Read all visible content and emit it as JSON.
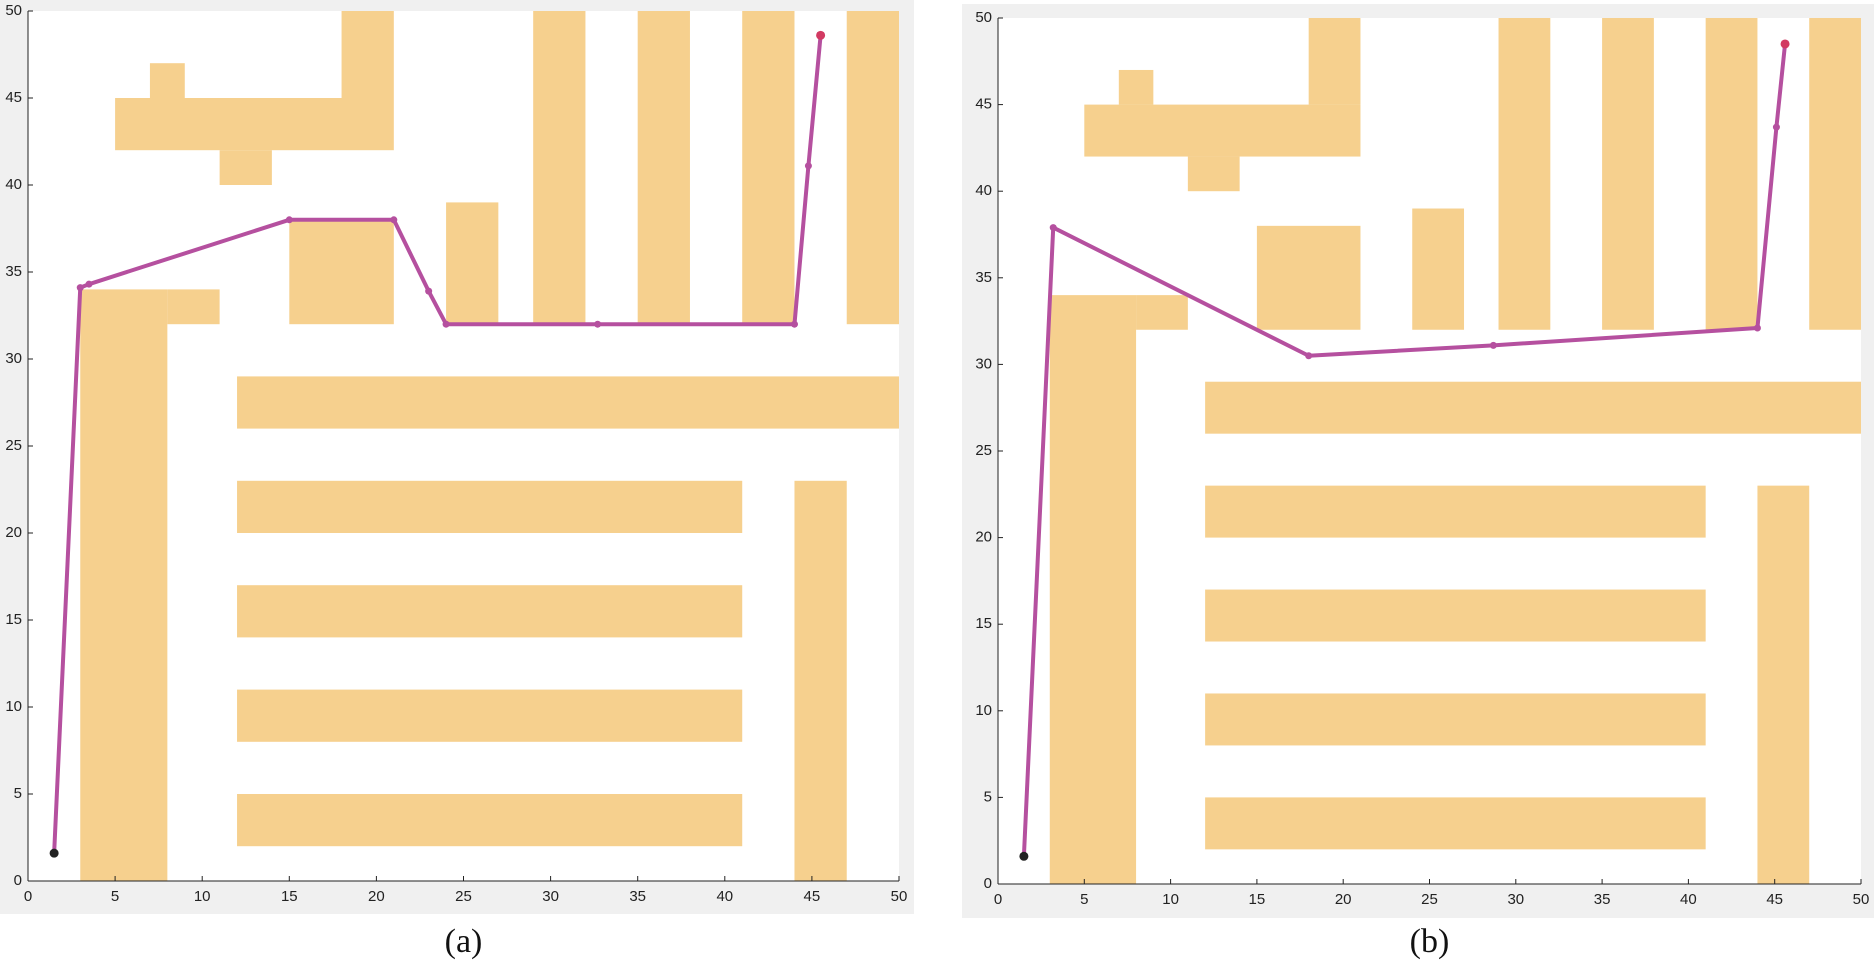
{
  "chart_data": [
    {
      "type": "line",
      "caption": "(a)",
      "xlim": [
        0,
        50
      ],
      "ylim": [
        0,
        50
      ],
      "xticks": [
        0,
        5,
        10,
        15,
        20,
        25,
        30,
        35,
        40,
        45,
        50
      ],
      "yticks": [
        0,
        5,
        10,
        15,
        20,
        25,
        30,
        35,
        40,
        45,
        50
      ],
      "obstacle_color": "#f6d08e",
      "obstacles": [
        {
          "x": [
            5,
            21
          ],
          "y": [
            42,
            45
          ]
        },
        {
          "x": [
            7,
            9
          ],
          "y": [
            45,
            47
          ]
        },
        {
          "x": [
            11,
            14
          ],
          "y": [
            40,
            42
          ]
        },
        {
          "x": [
            18,
            21
          ],
          "y": [
            45,
            50
          ]
        },
        {
          "x": [
            15,
            21
          ],
          "y": [
            32,
            38
          ]
        },
        {
          "x": [
            24,
            27
          ],
          "y": [
            32,
            39
          ]
        },
        {
          "x": [
            29,
            32
          ],
          "y": [
            32,
            50
          ]
        },
        {
          "x": [
            35,
            38
          ],
          "y": [
            32,
            50
          ]
        },
        {
          "x": [
            41,
            44
          ],
          "y": [
            32,
            50
          ]
        },
        {
          "x": [
            47,
            50
          ],
          "y": [
            32,
            50
          ]
        },
        {
          "x": [
            3,
            8
          ],
          "y": [
            0,
            34
          ]
        },
        {
          "x": [
            8,
            11
          ],
          "y": [
            32,
            34
          ]
        },
        {
          "x": [
            12,
            50
          ],
          "y": [
            26,
            29
          ]
        },
        {
          "x": [
            12,
            41
          ],
          "y": [
            20,
            23
          ]
        },
        {
          "x": [
            12,
            41
          ],
          "y": [
            14,
            17
          ]
        },
        {
          "x": [
            12,
            41
          ],
          "y": [
            8,
            11
          ]
        },
        {
          "x": [
            12,
            41
          ],
          "y": [
            2,
            5
          ]
        },
        {
          "x": [
            44,
            47
          ],
          "y": [
            0,
            23
          ]
        }
      ],
      "series": [
        {
          "color": "#b5509f",
          "x": [
            1.5,
            3,
            3.5,
            15,
            21,
            23,
            24,
            32.7,
            44,
            44.8,
            45.5
          ],
          "values": [
            1.6,
            34.1,
            34.3,
            38,
            38,
            33.9,
            32,
            32,
            32,
            41.1,
            48.6
          ]
        }
      ],
      "start_color": "#222222",
      "end_color": "#d23a62"
    },
    {
      "type": "line",
      "caption": "(b)",
      "xlim": [
        0,
        50
      ],
      "ylim": [
        0,
        50
      ],
      "xticks": [
        0,
        5,
        10,
        15,
        20,
        25,
        30,
        35,
        40,
        45,
        50
      ],
      "yticks": [
        0,
        5,
        10,
        15,
        20,
        25,
        30,
        35,
        40,
        45,
        50
      ],
      "obstacle_color": "#f6d08e",
      "obstacles": [
        {
          "x": [
            5,
            21
          ],
          "y": [
            42,
            45
          ]
        },
        {
          "x": [
            7,
            9
          ],
          "y": [
            45,
            47
          ]
        },
        {
          "x": [
            11,
            14
          ],
          "y": [
            40,
            42
          ]
        },
        {
          "x": [
            18,
            21
          ],
          "y": [
            45,
            50
          ]
        },
        {
          "x": [
            15,
            21
          ],
          "y": [
            32,
            38
          ]
        },
        {
          "x": [
            24,
            27
          ],
          "y": [
            32,
            39
          ]
        },
        {
          "x": [
            29,
            32
          ],
          "y": [
            32,
            50
          ]
        },
        {
          "x": [
            35,
            38
          ],
          "y": [
            32,
            50
          ]
        },
        {
          "x": [
            41,
            44
          ],
          "y": [
            32,
            50
          ]
        },
        {
          "x": [
            47,
            50
          ],
          "y": [
            32,
            50
          ]
        },
        {
          "x": [
            3,
            8
          ],
          "y": [
            0,
            34
          ]
        },
        {
          "x": [
            8,
            11
          ],
          "y": [
            32,
            34
          ]
        },
        {
          "x": [
            12,
            50
          ],
          "y": [
            26,
            29
          ]
        },
        {
          "x": [
            12,
            41
          ],
          "y": [
            20,
            23
          ]
        },
        {
          "x": [
            12,
            41
          ],
          "y": [
            14,
            17
          ]
        },
        {
          "x": [
            12,
            41
          ],
          "y": [
            8,
            11
          ]
        },
        {
          "x": [
            12,
            41
          ],
          "y": [
            2,
            5
          ]
        },
        {
          "x": [
            44,
            47
          ],
          "y": [
            0,
            23
          ]
        }
      ],
      "series": [
        {
          "color": "#b5509f",
          "x": [
            1.5,
            3.2,
            18,
            28.7,
            44,
            45.1,
            45.6
          ],
          "values": [
            1.6,
            37.9,
            30.5,
            31.1,
            32.1,
            43.7,
            48.5
          ]
        }
      ],
      "start_color": "#222222",
      "end_color": "#d23a62"
    }
  ]
}
